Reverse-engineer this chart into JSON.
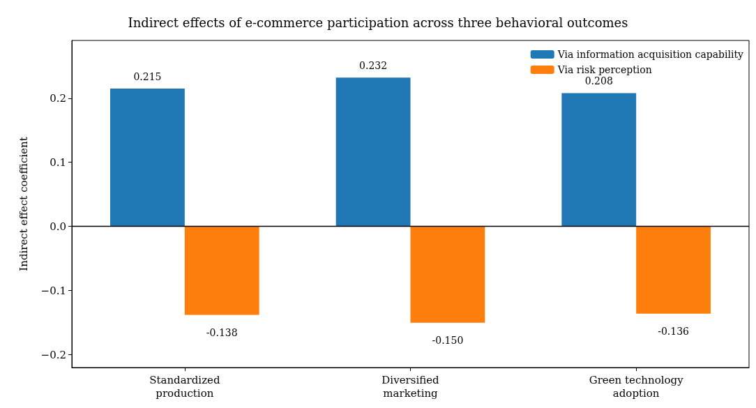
{
  "chart_data": {
    "type": "bar",
    "title": "Indirect effects of e-commerce participation across three behavioral outcomes",
    "ylabel": "Indirect effect coefficient",
    "categories": [
      "Standardized\nproduction",
      "Diversified\nmarketing",
      "Green technology\nadoption"
    ],
    "series": [
      {
        "name": "Via information acquisition capability",
        "color": "#1f77b4",
        "values": [
          0.215,
          0.232,
          0.208
        ],
        "value_labels": [
          "0.215",
          "0.232",
          "0.208"
        ]
      },
      {
        "name": "Via risk perception",
        "color": "#ff7f0e",
        "values": [
          -0.138,
          -0.15,
          -0.136
        ],
        "value_labels": [
          "-0.138",
          "-0.150",
          "-0.136"
        ]
      }
    ],
    "ylim": [
      -0.22,
      0.29
    ],
    "yticks": [
      {
        "value": -0.2,
        "label": "−0.2"
      },
      {
        "value": -0.1,
        "label": "−0.1"
      },
      {
        "value": 0,
        "label": "0.0"
      },
      0.1,
      0.2
    ],
    "ref_lines": [
      {
        "axis": "y",
        "value": 0,
        "color": "#000000"
      }
    ],
    "legend": "top right",
    "grid": false
  }
}
